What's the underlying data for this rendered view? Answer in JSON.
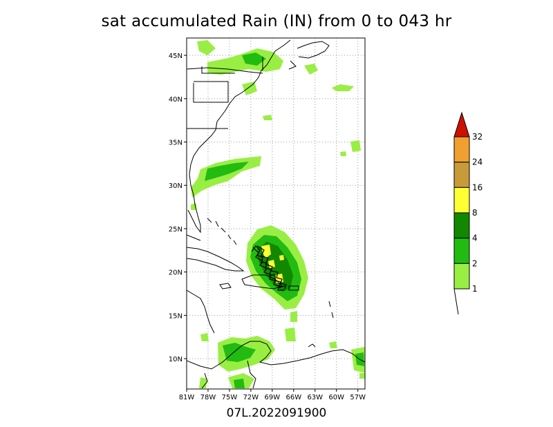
{
  "title": "sat accumulated Rain (IN) from 0 to 043 hr",
  "subtitle": "07L.2022091900",
  "map": {
    "lon_range": [
      -81,
      -56
    ],
    "lat_range": [
      6.5,
      47
    ],
    "lon_ticks": [
      "81W",
      "78W",
      "75W",
      "72W",
      "69W",
      "66W",
      "63W",
      "60W",
      "57W"
    ],
    "lat_ticks": [
      "45N",
      "40N",
      "35N",
      "30N",
      "25N",
      "20N",
      "15N",
      "10N"
    ],
    "grid": "dotted",
    "storm_track": "07L"
  },
  "colorbar": {
    "labels": [
      "1",
      "2",
      "4",
      "8",
      "16",
      "24",
      "32"
    ],
    "colors": [
      "#99ee44",
      "#22bb11",
      "#118800",
      "#ffff33",
      "#c89a3a",
      "#f0a030",
      "#cc1100"
    ]
  }
}
